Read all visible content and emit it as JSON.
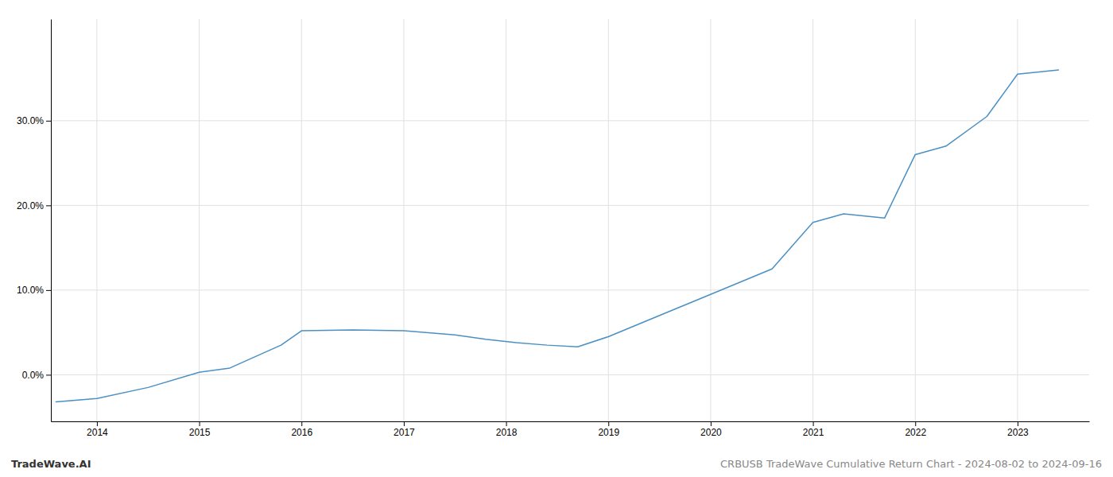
{
  "chart_data": {
    "type": "line",
    "annotations": [
      "TradeWave.AI",
      "CRBUSB TradeWave Cumulative Return Chart - 2024-08-02 to 2024-09-16"
    ],
    "x": [
      2013.6,
      2014.0,
      2014.5,
      2015.0,
      2015.3,
      2015.8,
      2016.0,
      2016.5,
      2017.0,
      2017.5,
      2017.8,
      2018.1,
      2018.4,
      2018.7,
      2019.0,
      2019.3,
      2019.6,
      2020.0,
      2020.3,
      2020.6,
      2021.0,
      2021.3,
      2021.7,
      2022.0,
      2022.3,
      2022.7,
      2023.0,
      2023.4
    ],
    "values": [
      -3.2,
      -2.8,
      -1.5,
      0.3,
      0.8,
      3.5,
      5.2,
      5.3,
      5.2,
      4.7,
      4.2,
      3.8,
      3.5,
      3.3,
      4.5,
      6.0,
      7.5,
      9.5,
      11.0,
      12.5,
      18.0,
      19.0,
      18.5,
      26.0,
      27.0,
      30.5,
      35.5,
      36.0
    ],
    "color": "#4a90c4",
    "xlim": [
      2013.55,
      2023.7
    ],
    "ylim": [
      -5.5,
      42
    ],
    "xticks": [
      2014,
      2015,
      2016,
      2017,
      2018,
      2019,
      2020,
      2021,
      2022,
      2023
    ],
    "yticks": [
      {
        "value": 0.0,
        "label": "0.0%"
      },
      {
        "value": 10.0,
        "label": "10.0%"
      },
      {
        "value": 20.0,
        "label": "20.0%"
      },
      {
        "value": 30.0,
        "label": "30.0%"
      }
    ],
    "grid": true
  }
}
